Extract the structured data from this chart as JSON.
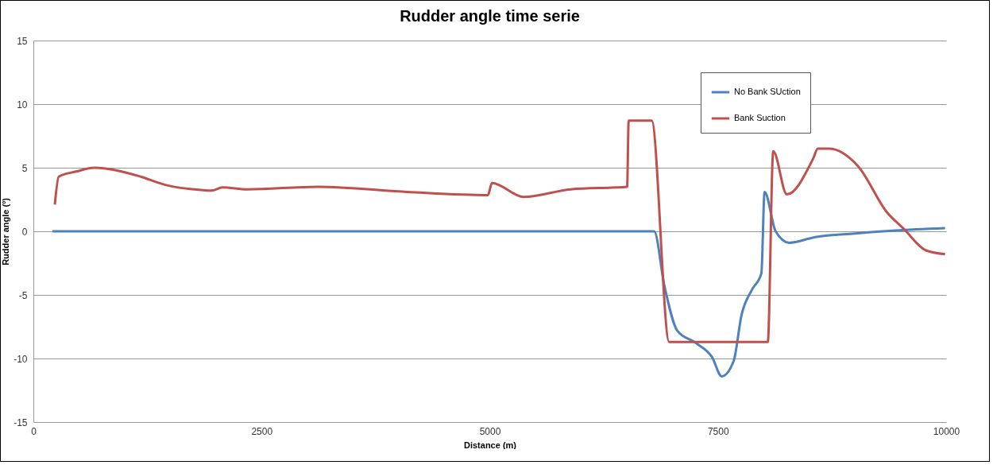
{
  "chart_data": {
    "type": "line",
    "title": "Rudder angle time serie",
    "xlabel": "Distance (m)",
    "ylabel": "Rudder angle (º)",
    "xlim": [
      0,
      10000
    ],
    "xticks": [
      0,
      2500,
      5000,
      7500,
      10000
    ],
    "ylim": [
      -15,
      15
    ],
    "yticks": [
      -15,
      -10,
      -5,
      0,
      5,
      10,
      15
    ],
    "grid": "y",
    "legend": "top right",
    "series": [
      {
        "name": "No Bank SUction",
        "color": "#4f81bd",
        "x": [
          209,
          6801,
          6914,
          7054,
          7262,
          7436,
          7541,
          7672,
          7758,
          7872,
          7976,
          8011,
          8132,
          8280,
          8568,
          9003,
          9439,
          9988
        ],
        "values": [
          0,
          0,
          -4.3,
          -7.8,
          -8.8,
          -9.9,
          -11.4,
          -10.2,
          -6.6,
          -4.6,
          -3.3,
          3.1,
          0,
          -0.9,
          -0.45,
          -0.17,
          0.06,
          0.25
        ]
      },
      {
        "name": "Bank Suction",
        "color": "#c0504d",
        "x": [
          235,
          278,
          470,
          670,
          906,
          1175,
          1446,
          1837,
          1951,
          2072,
          2343,
          3117,
          4093,
          4980,
          5024,
          5372,
          5886,
          6505,
          6522,
          6774,
          6966,
          8046,
          8106,
          8255,
          8542,
          8595,
          8716,
          9038,
          9351,
          9535,
          9779,
          9988
        ],
        "values": [
          2.1,
          4.3,
          4.7,
          5.0,
          4.8,
          4.3,
          3.65,
          3.25,
          3.2,
          3.45,
          3.3,
          3.5,
          3.1,
          2.85,
          3.8,
          2.7,
          3.3,
          3.5,
          8.7,
          8.7,
          -8.7,
          -8.7,
          6.3,
          2.9,
          5.7,
          6.5,
          6.5,
          5.1,
          1.5,
          0.2,
          -1.5,
          -1.8
        ]
      }
    ]
  }
}
